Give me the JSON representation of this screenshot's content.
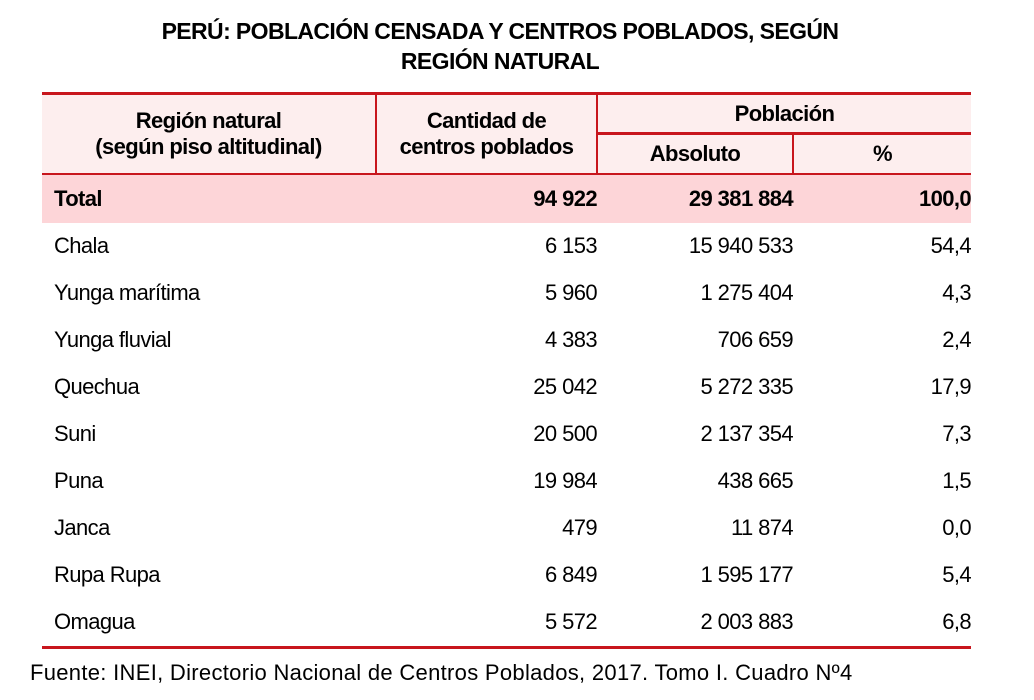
{
  "title": [
    "PERÚ: POBLACIÓN CENSADA Y CENTROS POBLADOS, SEGÚN",
    "REGIÓN NATURAL"
  ],
  "headers": {
    "region": [
      "Región natural",
      "(según piso altitudinal)"
    ],
    "centros": [
      "Cantidad de",
      "centros poblados"
    ],
    "poblacion": "Población",
    "absoluto": "Absoluto",
    "pct": "%"
  },
  "total": {
    "name": "Total",
    "centros": "94 922",
    "absoluto": "29 381 884",
    "pct": "100,0"
  },
  "rows": [
    {
      "name": "Chala",
      "centros": "6 153",
      "absoluto": "15 940 533",
      "pct": "54,4"
    },
    {
      "name": "Yunga marítima",
      "centros": "5 960",
      "absoluto": "1 275 404",
      "pct": "4,3"
    },
    {
      "name": "Yunga fluvial",
      "centros": "4 383",
      "absoluto": "706 659",
      "pct": "2,4"
    },
    {
      "name": "Quechua",
      "centros": "25 042",
      "absoluto": "5 272 335",
      "pct": "17,9"
    },
    {
      "name": "Suni",
      "centros": "20 500",
      "absoluto": "2 137 354",
      "pct": "7,3"
    },
    {
      "name": "Puna",
      "centros": "19 984",
      "absoluto": "438 665",
      "pct": "1,5"
    },
    {
      "name": "Janca",
      "centros": "479",
      "absoluto": "11 874",
      "pct": "0,0"
    },
    {
      "name": "Rupa Rupa",
      "centros": "6 849",
      "absoluto": "1 595 177",
      "pct": "5,4"
    },
    {
      "name": "Omagua",
      "centros": "5 572",
      "absoluto": "2 003 883",
      "pct": "6,8"
    }
  ],
  "source": "Fuente: INEI, Directorio Nacional de Centros Poblados, 2017. Tomo I. Cuadro Nº4"
}
